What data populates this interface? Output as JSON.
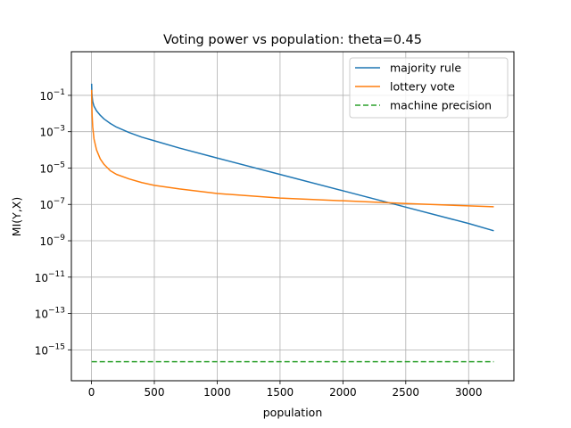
{
  "chart_data": {
    "type": "line",
    "title": "Voting power vs population: theta=0.45",
    "xlabel": "population",
    "ylabel": "MI(Y,X)",
    "xlim": [
      -160,
      3360
    ],
    "ylim_log10": [
      -16.7,
      1.4
    ],
    "yscale": "log",
    "grid": true,
    "legend_position": "upper right",
    "x_ticks": [
      0,
      500,
      1000,
      1500,
      2000,
      2500,
      3000
    ],
    "y_ticks": [
      {
        "exp": -1,
        "base": "10",
        "sup": "−1"
      },
      {
        "exp": -3,
        "base": "10",
        "sup": "−3"
      },
      {
        "exp": -5,
        "base": "10",
        "sup": "−5"
      },
      {
        "exp": -7,
        "base": "10",
        "sup": "−7"
      },
      {
        "exp": -9,
        "base": "10",
        "sup": "−9"
      },
      {
        "exp": -11,
        "base": "10",
        "sup": "−11"
      },
      {
        "exp": -13,
        "base": "10",
        "sup": "−13"
      },
      {
        "exp": -15,
        "base": "10",
        "sup": "−15"
      }
    ],
    "series": [
      {
        "name": "majority rule",
        "color": "#1f77b4",
        "style": "solid",
        "x": [
          1,
          3,
          5,
          10,
          20,
          40,
          70,
          100,
          150,
          200,
          300,
          400,
          500,
          700,
          1000,
          1500,
          2000,
          2500,
          3000,
          3200
        ],
        "log10_y": [
          -0.36,
          -0.85,
          -1.05,
          -1.35,
          -1.6,
          -1.85,
          -2.1,
          -2.3,
          -2.55,
          -2.75,
          -3.05,
          -3.3,
          -3.5,
          -3.9,
          -4.45,
          -5.35,
          -6.25,
          -7.15,
          -8.05,
          -8.45
        ]
      },
      {
        "name": "lottery vote",
        "color": "#ff7f0e",
        "style": "solid",
        "x": [
          1,
          3,
          5,
          10,
          20,
          40,
          70,
          100,
          150,
          200,
          300,
          400,
          500,
          700,
          1000,
          1500,
          2000,
          2500,
          3000,
          3200
        ],
        "log10_y": [
          -0.7,
          -1.6,
          -2.1,
          -2.75,
          -3.4,
          -4.0,
          -4.5,
          -4.8,
          -5.15,
          -5.35,
          -5.6,
          -5.8,
          -5.95,
          -6.15,
          -6.4,
          -6.65,
          -6.8,
          -6.95,
          -7.08,
          -7.13
        ]
      },
      {
        "name": "machine precision",
        "color": "#2ca02c",
        "style": "dashed",
        "x": [
          1,
          3200
        ],
        "log10_y": [
          -15.65,
          -15.65
        ]
      }
    ]
  }
}
